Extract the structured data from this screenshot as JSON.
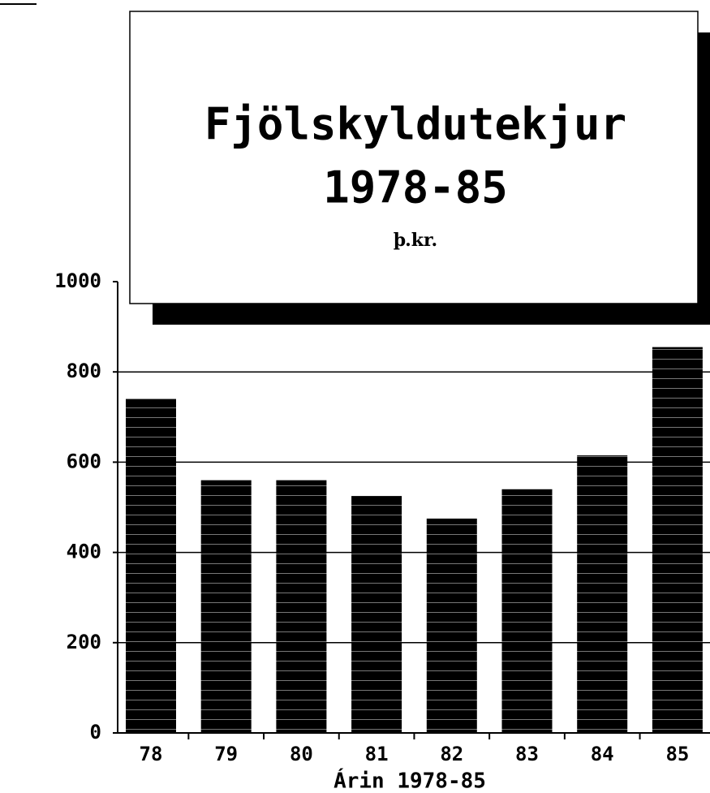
{
  "chart_data": {
    "type": "bar",
    "title": "Fjölskyldutekjur",
    "subtitle": "1978-85",
    "unit": "þ.kr.",
    "x_label": "Árin 1978-85",
    "categories": [
      "78",
      "79",
      "80",
      "81",
      "82",
      "83",
      "84",
      "85"
    ],
    "values": [
      740,
      560,
      560,
      525,
      475,
      540,
      615,
      855
    ],
    "color": "#000000",
    "ylim": [
      0,
      1000
    ],
    "yticks": [
      0,
      200,
      400,
      600,
      800,
      1000
    ],
    "grid": true
  }
}
